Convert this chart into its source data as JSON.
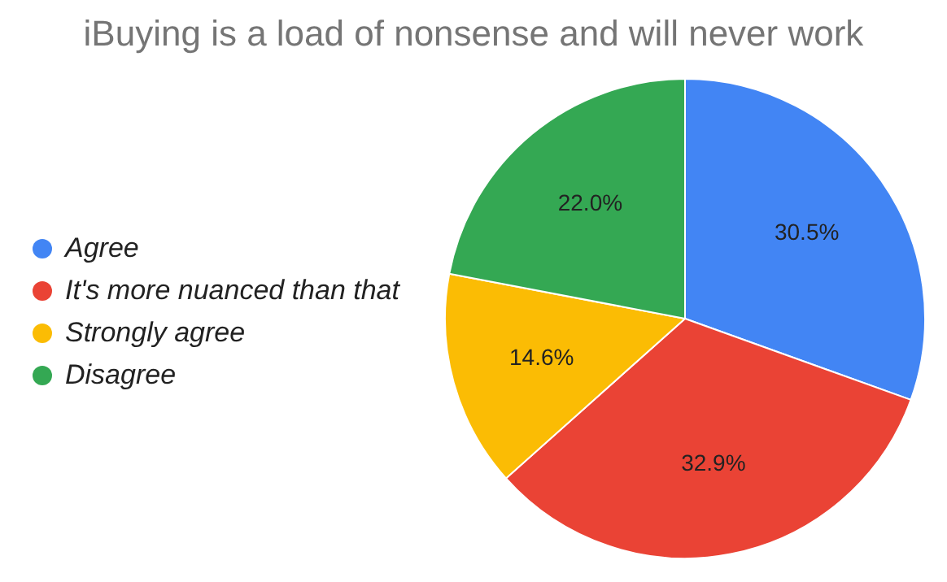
{
  "chart_data": {
    "type": "pie",
    "title": "iBuying is a load of nonsense and will never work",
    "categories": [
      "Agree",
      "It's more nuanced than that",
      "Strongly agree",
      "Disagree"
    ],
    "values": [
      30.5,
      32.9,
      14.6,
      22.0
    ],
    "value_labels": [
      "30.5%",
      "32.9%",
      "14.6%",
      "22.0%"
    ],
    "colors": [
      "#4285f4",
      "#ea4335",
      "#fbbc04",
      "#34a853"
    ],
    "legend": "left"
  }
}
